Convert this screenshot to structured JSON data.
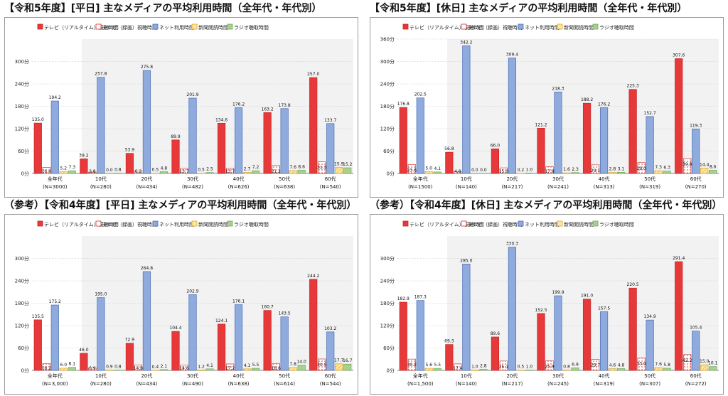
{
  "legend_labels": [
    "テレビ（リアルタイム）視聴時間",
    "テレビ（録画）視聴時間",
    "ネット利用時間",
    "新聞閲読時間",
    "ラジオ聴取時間"
  ],
  "colors": {
    "tv_live": "#e8393a",
    "tv_rec": "#ffffff",
    "net": "#8faadc",
    "paper": "#ffe699",
    "radio": "#a9d08e"
  },
  "panels": [
    {
      "title": "【令和5年度】[平日] 主なメディアの平均利用時間（全年代・年代別）"
    },
    {
      "title": "【令和5年度】[休日] 主なメディアの平均利用時間（全年代・年代別）"
    },
    {
      "title": "（参考）【令和4年度】[平日] 主なメディアの平均利用時間（全年代・年代別）"
    },
    {
      "title": "（参考）【令和4年度】[休日] 主なメディアの平均利用時間（全年代・年代別）"
    }
  ],
  "chart_data": [
    {
      "type": "bar",
      "title": "【令和5年度】[平日] 主なメディアの平均利用時間（全年代・年代別）",
      "categories": [
        "全年代",
        "10代",
        "20代",
        "30代",
        "40代",
        "50代",
        "60代"
      ],
      "sample_sizes": [
        "(N=3000)",
        "(N=280)",
        "(N=434)",
        "(N=482)",
        "(N=626)",
        "(N=638)",
        "(N=540)"
      ],
      "y_ticks": [
        "0分",
        "60分",
        "120分",
        "180分",
        "240分",
        "300分"
      ],
      "ylim": [
        0,
        360
      ],
      "series": [
        {
          "name": "テレビ（リアルタイム）視聴時間",
          "values": [
            135.0,
            39.2,
            53.9,
            89.9,
            134.6,
            163.2,
            257.0
          ],
          "labels": [
            "135.0",
            "39.2",
            "53.9",
            "89.9",
            "134.6",
            "163.2",
            "257.0"
          ]
        },
        {
          "name": "テレビ（録画）視聴時間",
          "values": [
            16.4,
            3.8,
            6.2,
            13.7,
            13.7,
            21.2,
            31.3
          ],
          "labels": [
            "16.4",
            "3.8",
            "6.2",
            "13.7",
            "13.7",
            "21.2",
            "31.3"
          ]
        },
        {
          "name": "ネット利用時間",
          "values": [
            194.2,
            257.8,
            275.8,
            201.9,
            176.2,
            173.8,
            133.7
          ],
          "labels": [
            "194.2",
            "257.8",
            "275.8",
            "201.9",
            "176.2",
            "173.8",
            "133.7"
          ]
        },
        {
          "name": "新聞閲読時間",
          "values": [
            5.2,
            0.0,
            0.5,
            0.5,
            2.7,
            7.6,
            15.9
          ],
          "labels": [
            "5.2",
            "0.0",
            "0.5",
            "0.5",
            "2.7",
            "7.6",
            "15.9"
          ]
        },
        {
          "name": "ラジオ聴取時間",
          "values": [
            7.3,
            0.8,
            4.8,
            2.5,
            7.2,
            8.6,
            15.2
          ],
          "labels": [
            "7.3",
            "0.8",
            "4.8",
            "2.5",
            "7.2",
            "8.6",
            "15.2"
          ]
        }
      ]
    },
    {
      "type": "bar",
      "title": "【令和5年度】[休日] 主なメディアの平均利用時間（全年代・年代別）",
      "categories": [
        "全年代",
        "10代",
        "20代",
        "30代",
        "40代",
        "50代",
        "60代"
      ],
      "sample_sizes": [
        "(N=1500)",
        "(N=140)",
        "(N=217)",
        "(N=241)",
        "(N=313)",
        "(N=319)",
        "(N=270)"
      ],
      "y_ticks": [
        "0分",
        "60分",
        "120分",
        "180分",
        "240分",
        "300分",
        "360分"
      ],
      "ylim": [
        0,
        360
      ],
      "series": [
        {
          "name": "テレビ（リアルタイム）視聴時間",
          "values": [
            176.8,
            56.8,
            66.0,
            121.2,
            188.2,
            225.3,
            307.6
          ],
          "labels": [
            "176.8",
            "56.8",
            "66.0",
            "121.2",
            "188.2",
            "225.3",
            "307.6"
          ]
        },
        {
          "name": "テレビ（録画）視聴時間",
          "values": [
            23.6,
            4.8,
            15.0,
            17.8,
            23.1,
            29.0,
            39.8
          ],
          "labels": [
            "23.6",
            "4.8",
            "15.0",
            "17.8",
            "23.1",
            "29.0",
            "39.8"
          ]
        },
        {
          "name": "ネット利用時間",
          "values": [
            202.5,
            342.2,
            309.4,
            218.3,
            176.2,
            152.7,
            119.3
          ],
          "labels": [
            "202.5",
            "342.2",
            "309.4",
            "218.3",
            "176.2",
            "152.7",
            "119.3"
          ]
        },
        {
          "name": "新聞閲読時間",
          "values": [
            5.0,
            0.0,
            0.2,
            1.6,
            2.8,
            7.3,
            14.4
          ],
          "labels": [
            "5.0",
            "0.0",
            "0.2",
            "1.6",
            "2.8",
            "7.3",
            "14.4"
          ]
        },
        {
          "name": "ラジオ聴取時間",
          "values": [
            4.1,
            0.0,
            1.0,
            2.3,
            3.1,
            6.3,
            8.6
          ],
          "labels": [
            "4.1",
            "0.0",
            "1.0",
            "2.3",
            "3.1",
            "6.3",
            "8.6"
          ]
        }
      ]
    },
    {
      "type": "bar",
      "title": "（参考）【令和4年度】[平日] 主なメディアの平均利用時間（全年代・年代別）",
      "categories": [
        "全年代",
        "10代",
        "20代",
        "30代",
        "40代",
        "50代",
        "60代"
      ],
      "sample_sizes": [
        "(N=3,000)",
        "(N=280)",
        "(N=434)",
        "(N=490)",
        "(N=638)",
        "(N=614)",
        "(N=544)"
      ],
      "y_ticks": [
        "0分",
        "60分",
        "120分",
        "180分",
        "240分",
        "300分"
      ],
      "ylim": [
        0,
        360
      ],
      "series": [
        {
          "name": "テレビ（リアルタイム）視聴時間",
          "values": [
            135.5,
            46.0,
            72.9,
            104.4,
            124.1,
            160.7,
            244.2
          ],
          "labels": [
            "135.5",
            "46.0",
            "72.9",
            "104.4",
            "124.1",
            "160.7",
            "244.2"
          ]
        },
        {
          "name": "テレビ（録画）視聴時間",
          "values": [
            18.2,
            6.9,
            14.8,
            14.6,
            17.2,
            18.6,
            30.5
          ],
          "labels": [
            "18.2",
            "6.9",
            "14.8",
            "14.6",
            "17.2",
            "18.6",
            "30.5"
          ]
        },
        {
          "name": "ネット利用時間",
          "values": [
            175.2,
            195.0,
            264.8,
            202.9,
            176.1,
            143.5,
            103.2
          ],
          "labels": [
            "175.2",
            "195.0",
            "264.8",
            "202.9",
            "176.1",
            "143.5",
            "103.2"
          ]
        },
        {
          "name": "新聞閲読時間",
          "values": [
            6.0,
            0.9,
            0.4,
            1.2,
            4.1,
            7.8,
            17.7
          ],
          "labels": [
            "6.0",
            "0.9",
            "0.4",
            "1.2",
            "4.1",
            "7.8",
            "17.7"
          ]
        },
        {
          "name": "ラジオ聴取時間",
          "values": [
            8.1,
            0.8,
            2.1,
            4.1,
            5.5,
            14.0,
            16.7
          ],
          "labels": [
            "8.1",
            "0.8",
            "2.1",
            "4.1",
            "5.5",
            "14.0",
            "16.7"
          ]
        }
      ]
    },
    {
      "type": "bar",
      "title": "（参考）【令和4年度】[休日] 主なメディアの平均利用時間（全年代・年代別）",
      "categories": [
        "全年代",
        "10代",
        "20代",
        "30代",
        "40代",
        "50代",
        "60代"
      ],
      "sample_sizes": [
        "(N=1,500)",
        "(N=140)",
        "(N=217)",
        "(N=245)",
        "(N=319)",
        "(N=307)",
        "(N=272)"
      ],
      "y_ticks": [
        "0分",
        "60分",
        "120分",
        "180分",
        "240分",
        "300分"
      ],
      "ylim": [
        0,
        360
      ],
      "series": [
        {
          "name": "テレビ（リアルタイム）視聴時間",
          "values": [
            182.9,
            69.3,
            89.6,
            152.5,
            191.0,
            220.5,
            291.4
          ],
          "labels": [
            "182.9",
            "69.3",
            "89.6",
            "152.5",
            "191.0",
            "220.5",
            "291.4"
          ]
        },
        {
          "name": "テレビ（録画）視聴時間",
          "values": [
            30.2,
            17.4,
            25.1,
            25.9,
            29.7,
            33.0,
            42.2
          ],
          "labels": [
            "30.2",
            "17.4",
            "25.1",
            "25.9",
            "29.7",
            "33.0",
            "42.2"
          ]
        },
        {
          "name": "ネット利用時間",
          "values": [
            187.3,
            285.0,
            330.3,
            199.9,
            157.5,
            134.9,
            105.4
          ],
          "labels": [
            "187.3",
            "285.0",
            "330.3",
            "199.9",
            "157.5",
            "134.9",
            "105.4"
          ]
        },
        {
          "name": "新聞閲読時間",
          "values": [
            5.6,
            1.0,
            0.5,
            0.8,
            4.6,
            7.6,
            15.0
          ],
          "labels": [
            "5.6",
            "1.0",
            "0.5",
            "0.8",
            "4.6",
            "7.6",
            "15.0"
          ]
        },
        {
          "name": "ラジオ聴取時間",
          "values": [
            5.5,
            2.8,
            1.0,
            6.9,
            4.8,
            5.8,
            10.1
          ],
          "labels": [
            "5.5",
            "2.8",
            "1.0",
            "6.9",
            "4.8",
            "5.8",
            "10.1"
          ]
        }
      ]
    }
  ]
}
